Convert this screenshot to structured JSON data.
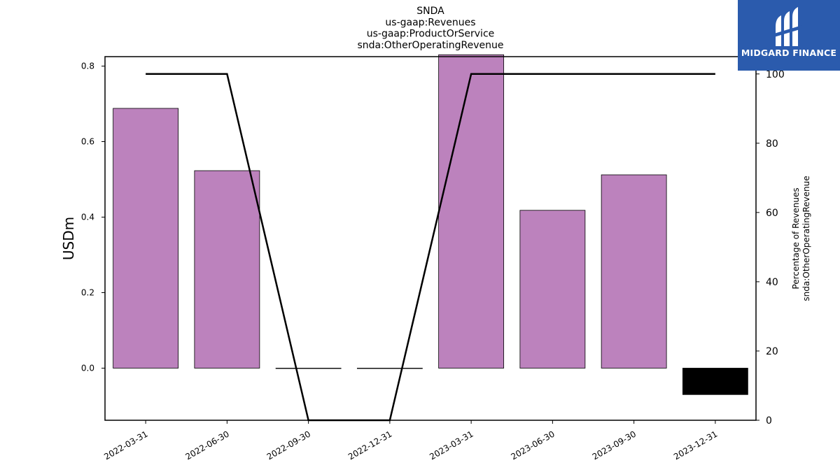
{
  "chart_data": {
    "type": "bar",
    "title_lines": [
      "SNDA",
      "us-gaap:Revenues",
      "us-gaap:ProductOrService",
      "snda:OtherOperatingRevenue"
    ],
    "categories": [
      "2022-03-31",
      "2022-06-30",
      "2022-09-30",
      "2022-12-31",
      "2023-03-31",
      "2023-06-30",
      "2023-09-30",
      "2023-12-31"
    ],
    "series": [
      {
        "values": [
          0.688,
          0.523,
          0.0,
          0.0,
          0.83,
          0.418,
          0.512,
          -0.07
        ]
      },
      {
        "values": [
          100,
          100,
          0,
          0,
          100,
          100,
          100,
          100
        ]
      }
    ],
    "bar_colors": [
      "#bc82bd",
      "#bc82bd",
      "#bc82bd",
      "#bc82bd",
      "#bc82bd",
      "#bc82bd",
      "#bc82bd",
      "#000000"
    ],
    "line_color": "#000000",
    "ylabel": "USDm",
    "ylabel_right_lines": [
      "Percentage of Revenues",
      "snda:OtherOperatingRevenue"
    ],
    "ylim": [
      -0.138,
      0.825
    ],
    "yticks": [
      "0.0",
      "0.2",
      "0.4",
      "0.6",
      "0.8"
    ],
    "ylim_right": [
      0,
      105
    ],
    "yticks_right": [
      "0",
      "20",
      "40",
      "60",
      "80",
      "100"
    ],
    "grid": false
  },
  "logo": {
    "text": "MIDGARD FINANCE",
    "color": "#2b5bad"
  }
}
